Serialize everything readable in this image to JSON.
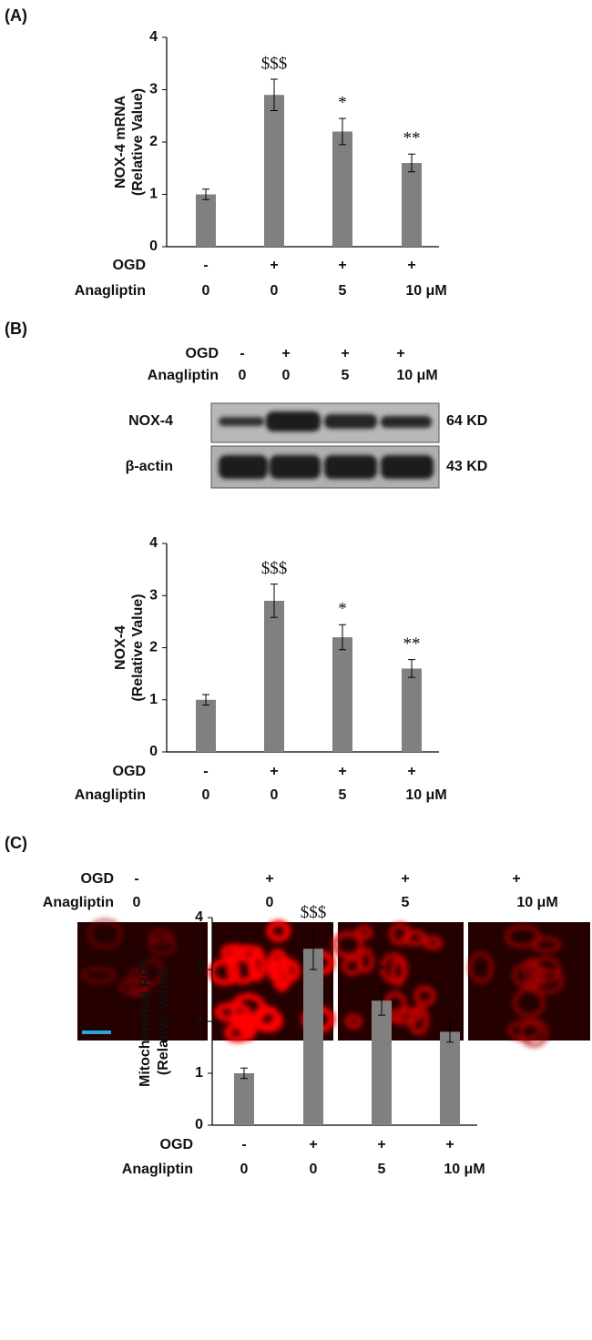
{
  "panels": [
    "(A)",
    "(B)",
    "(C)"
  ],
  "chart_data": [
    {
      "type": "bar",
      "ylabel": [
        "NOX-4 mRNA",
        "(Relative Value)"
      ],
      "rows": [
        {
          "label": "OGD",
          "values": [
            "-",
            "+",
            "+",
            "+"
          ]
        },
        {
          "label": "Anagliptin",
          "values": [
            "0",
            "0",
            "5",
            "10 μM"
          ]
        }
      ],
      "values": [
        1.0,
        2.9,
        2.2,
        1.6
      ],
      "errors": [
        0.1,
        0.3,
        0.25,
        0.17
      ],
      "annotations": [
        null,
        "$$$",
        "*",
        "**"
      ],
      "color": "#808080",
      "ylim": [
        0,
        4
      ],
      "yticks": [
        0,
        1,
        2,
        3,
        4
      ]
    },
    {
      "type": "bar",
      "ylabel": [
        "NOX-4",
        "(Relative Value)"
      ],
      "rows": [
        {
          "label": "OGD",
          "values": [
            "-",
            "+",
            "+",
            "+"
          ]
        },
        {
          "label": "Anagliptin",
          "values": [
            "0",
            "0",
            "5",
            "10 μM"
          ]
        }
      ],
      "values": [
        1.0,
        2.9,
        2.2,
        1.6
      ],
      "errors": [
        0.1,
        0.32,
        0.24,
        0.17
      ],
      "annotations": [
        null,
        "$$$",
        "*",
        "**"
      ],
      "color": "#808080",
      "ylim": [
        0,
        4
      ],
      "yticks": [
        0,
        1,
        2,
        3,
        4
      ]
    },
    {
      "type": "bar",
      "ylabel": [
        "Mitochondrial ROS",
        "(Relative Value)"
      ],
      "rows": [
        {
          "label": "OGD",
          "values": [
            "-",
            "+",
            "+",
            "+"
          ]
        },
        {
          "label": "Anagliptin",
          "values": [
            "0",
            "0",
            "5",
            "10 μM"
          ]
        }
      ],
      "values": [
        1.0,
        3.4,
        2.4,
        1.8
      ],
      "errors": [
        0.1,
        0.4,
        0.28,
        0.2
      ],
      "annotations": [
        null,
        "$$$",
        "*",
        "**"
      ],
      "color": "#808080",
      "ylim": [
        0,
        4
      ],
      "yticks": [
        0,
        1,
        2,
        3,
        4
      ]
    }
  ],
  "blot": {
    "rows": [
      {
        "label": "OGD",
        "values": [
          "-",
          "+",
          "+",
          "+"
        ]
      },
      {
        "label": "Anagliptin",
        "values": [
          "0",
          "0",
          "5",
          "10 μM"
        ]
      }
    ],
    "bands": [
      {
        "label": "NOX-4",
        "size": "64 KD"
      },
      {
        "label": "β-actin",
        "size": "43 KD"
      }
    ]
  },
  "images": {
    "rows": [
      {
        "label": "OGD",
        "values": [
          "-",
          "+",
          "+",
          "+"
        ]
      },
      {
        "label": "Anagliptin",
        "values": [
          "0",
          "0",
          "5",
          "10 μM"
        ]
      }
    ]
  }
}
